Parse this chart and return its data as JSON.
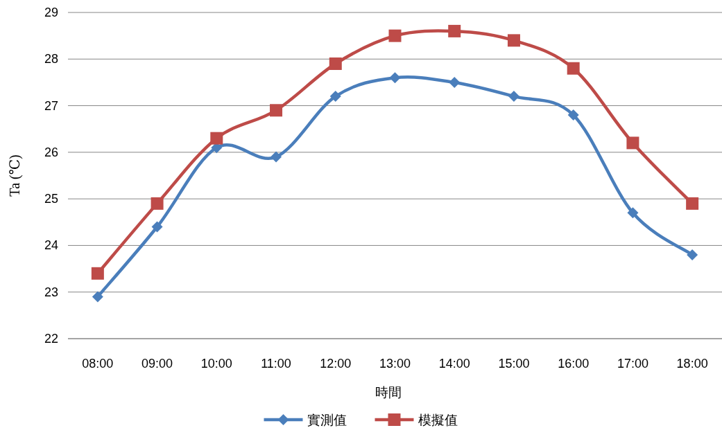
{
  "chart_data": {
    "type": "line",
    "xlabel": "時間",
    "ylabel": "Ta (℃)",
    "categories": [
      "08:00",
      "09:00",
      "10:00",
      "11:00",
      "12:00",
      "13:00",
      "14:00",
      "15:00",
      "16:00",
      "17:00",
      "18:00"
    ],
    "series": [
      {
        "name": "實測值",
        "color": "#4a7ebb",
        "marker": "diamond",
        "values": [
          22.9,
          24.4,
          26.1,
          25.9,
          27.2,
          27.6,
          27.5,
          27.2,
          26.8,
          24.7,
          23.8
        ]
      },
      {
        "name": "模擬值",
        "color": "#be4b48",
        "marker": "square",
        "values": [
          23.4,
          24.9,
          26.3,
          26.9,
          27.9,
          28.5,
          28.6,
          28.4,
          27.8,
          26.2,
          24.9
        ]
      }
    ],
    "ylim": [
      22,
      29
    ],
    "yticks": [
      22,
      23,
      24,
      25,
      26,
      27,
      28,
      29
    ],
    "grid": "y",
    "legend": "bottom",
    "line_style": "solid"
  }
}
